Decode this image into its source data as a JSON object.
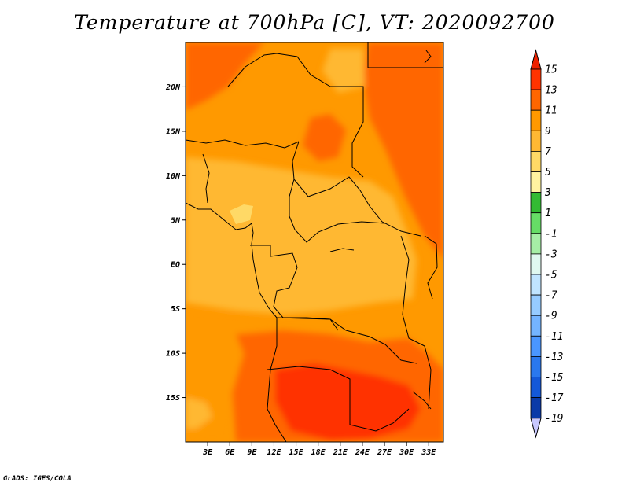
{
  "title": "Temperature at 700hPa [C], VT: 2020092700",
  "credit": "GrADS: IGES/COLA",
  "map": {
    "lon_range": [
      0,
      35
    ],
    "lat_range": [
      -20,
      25
    ],
    "y_ticks": [
      {
        "lat": 20,
        "label": "20N"
      },
      {
        "lat": 15,
        "label": "15N"
      },
      {
        "lat": 10,
        "label": "10N"
      },
      {
        "lat": 5,
        "label": "5N"
      },
      {
        "lat": 0,
        "label": "EQ"
      },
      {
        "lat": -5,
        "label": "5S"
      },
      {
        "lat": -10,
        "label": "10S"
      },
      {
        "lat": -15,
        "label": "15S"
      }
    ],
    "x_ticks": [
      {
        "lon": 3,
        "label": "3E"
      },
      {
        "lon": 6,
        "label": "6E"
      },
      {
        "lon": 9,
        "label": "9E"
      },
      {
        "lon": 12,
        "label": "12E"
      },
      {
        "lon": 15,
        "label": "15E"
      },
      {
        "lon": 18,
        "label": "18E"
      },
      {
        "lon": 21,
        "label": "21E"
      },
      {
        "lon": 24,
        "label": "24E"
      },
      {
        "lon": 27,
        "label": "27E"
      },
      {
        "lon": 30,
        "label": "30E"
      },
      {
        "lon": 33,
        "label": "33E"
      }
    ]
  },
  "colorbar": {
    "labels": [
      "15",
      "13",
      "11",
      "9",
      "7",
      "5",
      "3",
      "1",
      "-1",
      "-3",
      "-5",
      "-7",
      "-9",
      "-11",
      "-13",
      "-15",
      "-17",
      "-19"
    ],
    "colors": [
      "#ff3300",
      "#ff6600",
      "#ff9900",
      "#ffb833",
      "#ffd966",
      "#fff3a0",
      "#33bb33",
      "#66dd66",
      "#a6eea6",
      "#e0f8f0",
      "#c0e4ff",
      "#96cbff",
      "#74b4ff",
      "#4a96ff",
      "#2a78ee",
      "#1458d8",
      "#0a3aa8"
    ],
    "top_color": "#ee2200",
    "bottom_color": "#c8c8ff"
  }
}
